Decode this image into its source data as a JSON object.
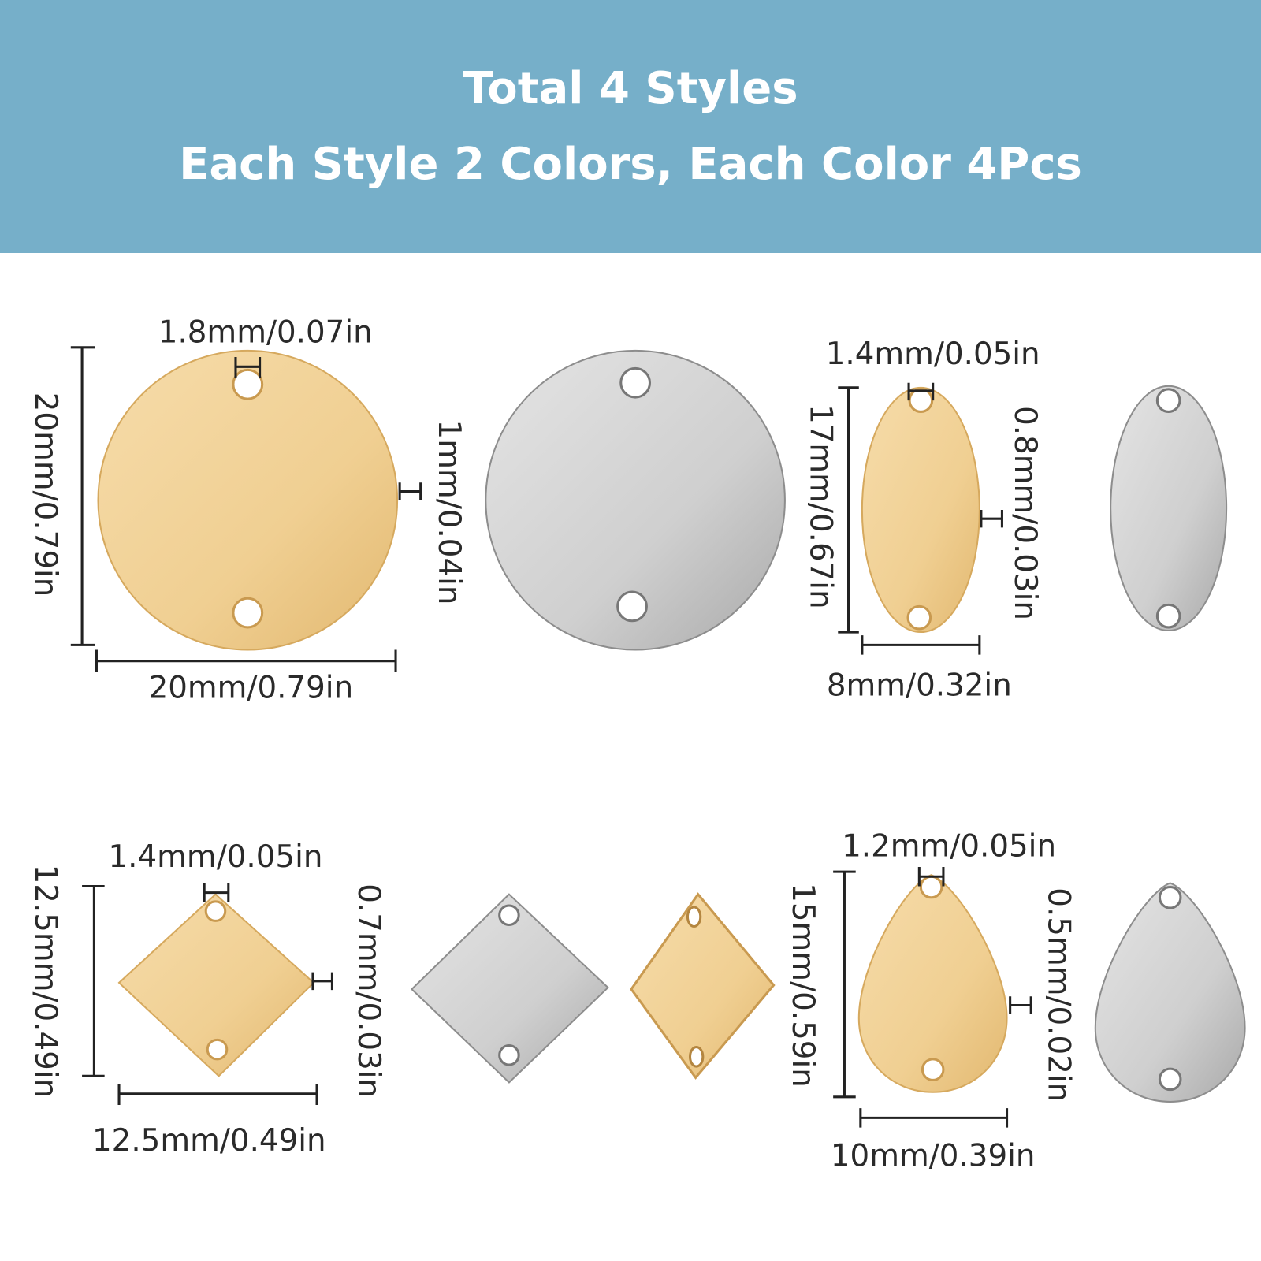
{
  "header": {
    "line1": "Total 4 Styles",
    "line2": "Each Style 2 Colors, Each Color 4Pcs",
    "background": "#76afc9"
  },
  "colors": {
    "gold": "#f2d29a",
    "silver": "#d2d2d2"
  },
  "styles": [
    {
      "shape": "round",
      "hole": "1.8mm/0.07in",
      "height": "20mm/0.79in",
      "thickness": "1mm/0.04in",
      "width": "20mm/0.79in"
    },
    {
      "shape": "oval",
      "hole": "1.4mm/0.05in",
      "height": "17mm/0.67in",
      "thickness": "0.8mm/0.03in",
      "width": "8mm/0.32in"
    },
    {
      "shape": "rhombus",
      "hole": "1.4mm/0.05in",
      "height": "12.5mm/0.49in",
      "thickness": "0.7mm/0.03in",
      "width": "12.5mm/0.49in"
    },
    {
      "shape": "teardrop",
      "hole": "1.2mm/0.05in",
      "height": "15mm/0.59in",
      "thickness": "0.5mm/0.02in",
      "width": "10mm/0.39in"
    }
  ]
}
